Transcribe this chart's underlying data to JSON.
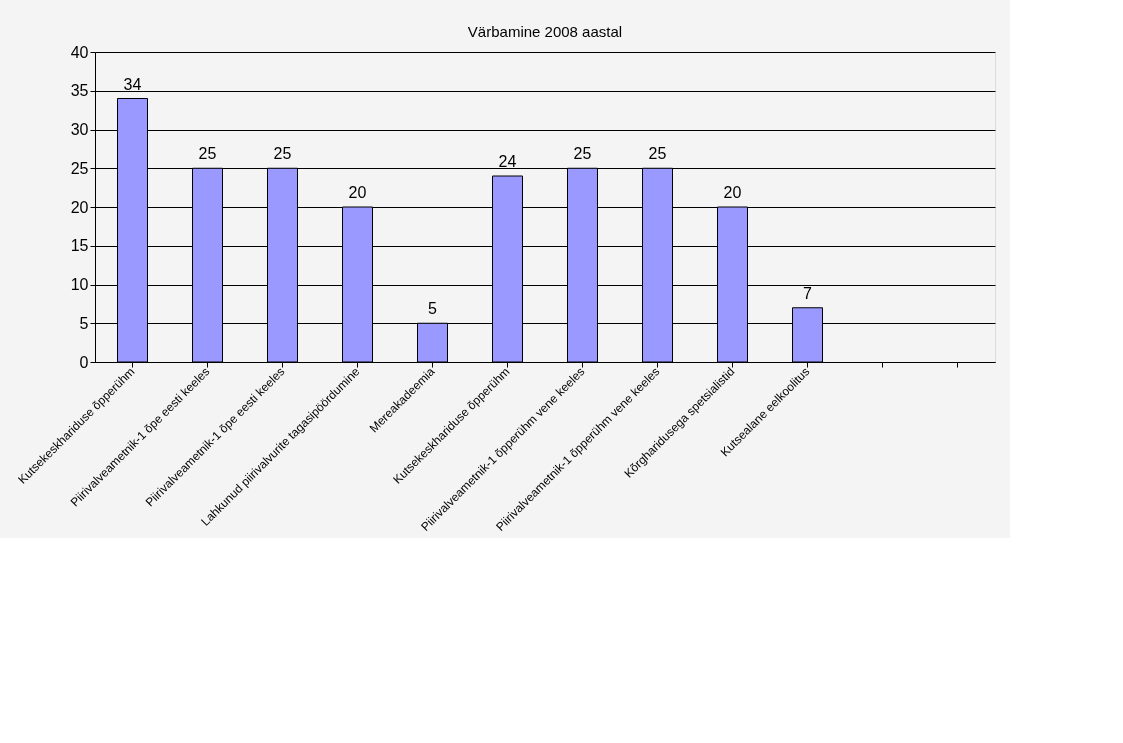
{
  "chart_data": {
    "type": "bar",
    "title": "Värbamine 2008 aastal",
    "categories": [
      "Kutsekeskhariduse õpperühm",
      "Piirivalveametnik-1 õpe eesti keeles",
      "Piirivalveametnik-1 õpe eesti keeles",
      "Lahkunud piirivalvurite tagasipöördumine",
      "Mereakadeemia",
      "Kutsekeskhariduse õpperühm",
      "Piirivalveametnik-1 õpperühm vene keeles",
      "Piirivalveametnik-1 õpperühm vene keeles",
      "Kõrgharidusega spetsialistid",
      "Kutsealane eelkoolitus",
      null,
      null
    ],
    "values": [
      34,
      25,
      25,
      20,
      5,
      24,
      25,
      25,
      20,
      7,
      null,
      null
    ],
    "color": "#9999ff",
    "ylim": [
      0,
      40
    ],
    "yticks": [
      0,
      5,
      10,
      15,
      20,
      25,
      30,
      35,
      40
    ],
    "grid": "y",
    "data_labels": true
  }
}
